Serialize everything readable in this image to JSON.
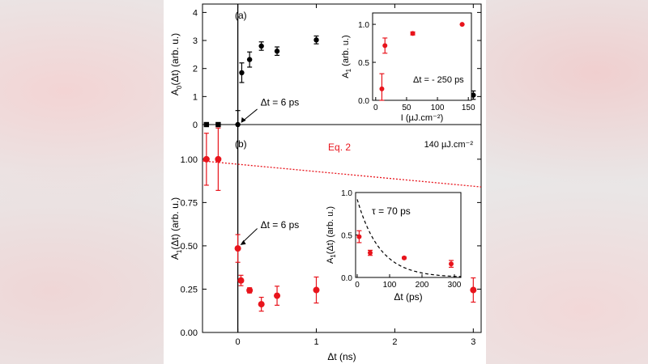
{
  "chart_data": [
    {
      "id": "a",
      "type": "scatter",
      "panel_label": "(a)",
      "ylabel": "A0(Δt) (arb. u.)",
      "ylabel_main": "A",
      "ylabel_sub": "0",
      "ylabel_rest": "(Δt) (arb. u.)",
      "xlim": [
        -0.45,
        3.1
      ],
      "ylim": [
        0,
        4.3
      ],
      "yticks": [
        0,
        1,
        2,
        3,
        4
      ],
      "color": "#000000",
      "points": [
        {
          "x": -0.4,
          "y": 0,
          "err": 0.05
        },
        {
          "x": -0.25,
          "y": 0,
          "err": 0.05
        },
        {
          "x": 0.0,
          "y": 0,
          "err": 0.5
        },
        {
          "x": 0.05,
          "y": 1.85,
          "err": 0.35
        },
        {
          "x": 0.15,
          "y": 2.32,
          "err": 0.27
        },
        {
          "x": 0.3,
          "y": 2.8,
          "err": 0.15
        },
        {
          "x": 0.5,
          "y": 2.62,
          "err": 0.15
        },
        {
          "x": 1.0,
          "y": 3.02,
          "err": 0.14
        },
        {
          "x": 3.0,
          "y": 1.05,
          "err": 0.15
        }
      ],
      "annotation": "Δt = 6 ps",
      "inset": {
        "type": "scatter",
        "xlabel": "I (µJ.cm⁻²)",
        "ylabel": "A1 (arb. u.)",
        "ylabel_main": "A",
        "ylabel_sub": "1",
        "ylabel_rest": " (arb. u.)",
        "xlim": [
          -5,
          155
        ],
        "ylim": [
          0,
          1.15
        ],
        "xticks": [
          0,
          50,
          100,
          150
        ],
        "yticks": [
          0.0,
          0.5,
          1.0
        ],
        "ytick_labels": [
          "0.0",
          "0.5",
          "1.0"
        ],
        "color": "#e8141c",
        "points": [
          {
            "x": 10,
            "y": 0.15,
            "err": 0.2
          },
          {
            "x": 15,
            "y": 0.72,
            "err": 0.1
          },
          {
            "x": 60,
            "y": 0.88,
            "err": 0.02
          },
          {
            "x": 140,
            "y": 1.0,
            "err": 0.0
          }
        ],
        "annotation": "Δt = - 250 ps"
      }
    },
    {
      "id": "b",
      "type": "scatter",
      "panel_label": "(b)",
      "xlabel": "Δt (ns)",
      "ylabel": "A1(Δt) (arb. u.)",
      "ylabel_main": "A",
      "ylabel_sub": "1",
      "ylabel_rest": "(Δt) (arb. u.)",
      "xlim": [
        -0.45,
        3.1
      ],
      "ylim": [
        0,
        1.2
      ],
      "xticks": [
        0,
        1,
        2,
        3
      ],
      "yticks": [
        0.0,
        0.25,
        0.5,
        0.75,
        1.0
      ],
      "ytick_labels": [
        "0.00",
        "0.25",
        "0.50",
        "0.75",
        "1.00"
      ],
      "color": "#e8141c",
      "fluence_label": "140 µJ.cm⁻²",
      "fit_label": "Eq. 2",
      "fit_line": {
        "x0": -0.45,
        "y0": 0.99,
        "x1": 3.1,
        "y1": 0.84
      },
      "points": [
        {
          "x": -0.4,
          "y": 1.0,
          "err": 0.15
        },
        {
          "x": -0.25,
          "y": 1.0,
          "err": 0.18
        },
        {
          "x": 0.0,
          "y": 0.485,
          "err": 0.08
        },
        {
          "x": 0.04,
          "y": 0.3,
          "err": 0.03
        },
        {
          "x": 0.15,
          "y": 0.243,
          "err": 0.015
        },
        {
          "x": 0.3,
          "y": 0.163,
          "err": 0.04
        },
        {
          "x": 0.5,
          "y": 0.212,
          "err": 0.055
        },
        {
          "x": 1.0,
          "y": 0.245,
          "err": 0.075
        },
        {
          "x": 3.0,
          "y": 0.245,
          "err": 0.07
        }
      ],
      "annotation": "Δt = 6 ps",
      "inset": {
        "type": "scatter",
        "xlabel": "Δt (ps)",
        "ylabel": "A1(Δt) (arb. u.)",
        "ylabel_main": "A",
        "ylabel_sub": "1",
        "ylabel_rest": "(Δt) (arb. u.)",
        "xlim": [
          -5,
          320
        ],
        "ylim": [
          0,
          1.0
        ],
        "xticks": [
          0,
          100,
          200,
          300
        ],
        "yticks": [
          0.0,
          0.5,
          1.0
        ],
        "ytick_labels": [
          "0.0",
          "0.5",
          "1.0"
        ],
        "color": "#e8141c",
        "points": [
          {
            "x": 6,
            "y": 0.48,
            "err": 0.07
          },
          {
            "x": 40,
            "y": 0.29,
            "err": 0.03
          },
          {
            "x": 145,
            "y": 0.23,
            "err": 0.01
          },
          {
            "x": 290,
            "y": 0.16,
            "err": 0.04
          }
        ],
        "tau_label": "τ = 70 ps",
        "decay": {
          "a": 0.92,
          "tau": 70
        }
      }
    }
  ]
}
